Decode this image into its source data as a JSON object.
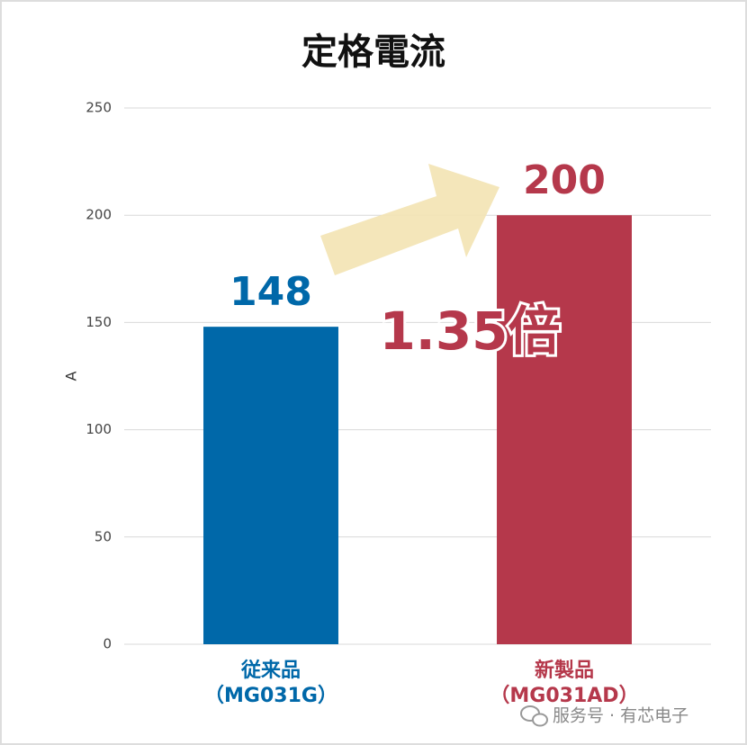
{
  "chart_data": {
    "type": "bar",
    "title": "定格電流",
    "categories": [
      [
        "従来品",
        "（MG031G）"
      ],
      [
        "新製品",
        "（MG031AD）"
      ]
    ],
    "values": [
      148,
      200
    ],
    "colors": [
      "#0068a9",
      "#b5384b"
    ],
    "ylabel": "A",
    "ylim": [
      0,
      250
    ],
    "yticks": [
      0,
      50,
      100,
      150,
      200,
      250
    ],
    "grid": true,
    "annotation": "1.35倍",
    "watermark": "服务号 · 有芯电子"
  }
}
